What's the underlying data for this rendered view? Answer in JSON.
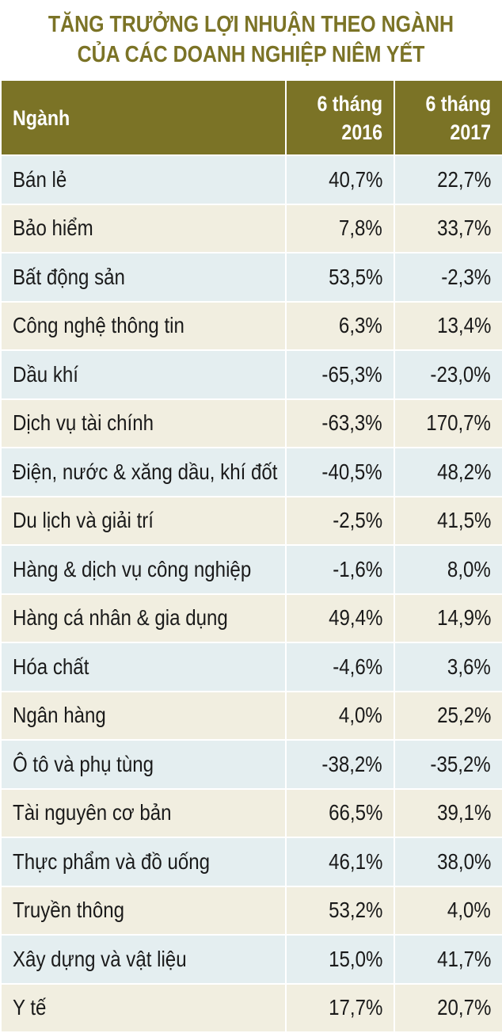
{
  "title": {
    "line1": "TĂNG TRƯỞNG LỢI NHUẬN THEO NGÀNH",
    "line2": "CỦA CÁC DOANH NGHIỆP NIÊM YẾT"
  },
  "colors": {
    "header_bg": "#7b7326",
    "title_text": "#7b7326",
    "row_blue": "#e4eef0",
    "row_beige": "#f1eee0"
  },
  "chart_data": {
    "type": "table",
    "title": "TĂNG TRƯỞNG LỢI NHUẬN THEO NGÀNH CỦA CÁC DOANH NGHIỆP NIÊM YẾT",
    "columns": [
      {
        "label": "Ngành"
      },
      {
        "label_line1": "6 tháng",
        "label_line2": "2016"
      },
      {
        "label_line1": "6 tháng",
        "label_line2": "2017"
      }
    ],
    "rows": [
      {
        "name": "Bán lẻ",
        "v2016": "40,7%",
        "v2017": "22,7%"
      },
      {
        "name": "Bảo hiểm",
        "v2016": "7,8%",
        "v2017": "33,7%"
      },
      {
        "name": "Bất động sản",
        "v2016": "53,5%",
        "v2017": "-2,3%"
      },
      {
        "name": "Công nghệ thông tin",
        "v2016": "6,3%",
        "v2017": "13,4%"
      },
      {
        "name": "Dầu khí",
        "v2016": "-65,3%",
        "v2017": "-23,0%"
      },
      {
        "name": "Dịch vụ tài chính",
        "v2016": "-63,3%",
        "v2017": "170,7%"
      },
      {
        "name": "Điện, nước & xăng dầu, khí đốt",
        "v2016": "-40,5%",
        "v2017": "48,2%"
      },
      {
        "name": "Du lịch và giải trí",
        "v2016": "-2,5%",
        "v2017": "41,5%"
      },
      {
        "name": "Hàng & dịch vụ công nghiệp",
        "v2016": "-1,6%",
        "v2017": "8,0%"
      },
      {
        "name": "Hàng cá nhân & gia dụng",
        "v2016": "49,4%",
        "v2017": "14,9%"
      },
      {
        "name": "Hóa chất",
        "v2016": "-4,6%",
        "v2017": "3,6%"
      },
      {
        "name": "Ngân hàng",
        "v2016": "4,0%",
        "v2017": "25,2%"
      },
      {
        "name": "Ô tô và phụ tùng",
        "v2016": "-38,2%",
        "v2017": "-35,2%"
      },
      {
        "name": "Tài nguyên cơ bản",
        "v2016": "66,5%",
        "v2017": "39,1%"
      },
      {
        "name": "Thực phẩm và đồ uống",
        "v2016": "46,1%",
        "v2017": "38,0%"
      },
      {
        "name": "Truyền thông",
        "v2016": "53,2%",
        "v2017": "4,0%"
      },
      {
        "name": "Xây dựng và vật liệu",
        "v2016": "15,0%",
        "v2017": "41,7%"
      },
      {
        "name": "Y tế",
        "v2016": "17,7%",
        "v2017": "20,7%"
      }
    ]
  }
}
